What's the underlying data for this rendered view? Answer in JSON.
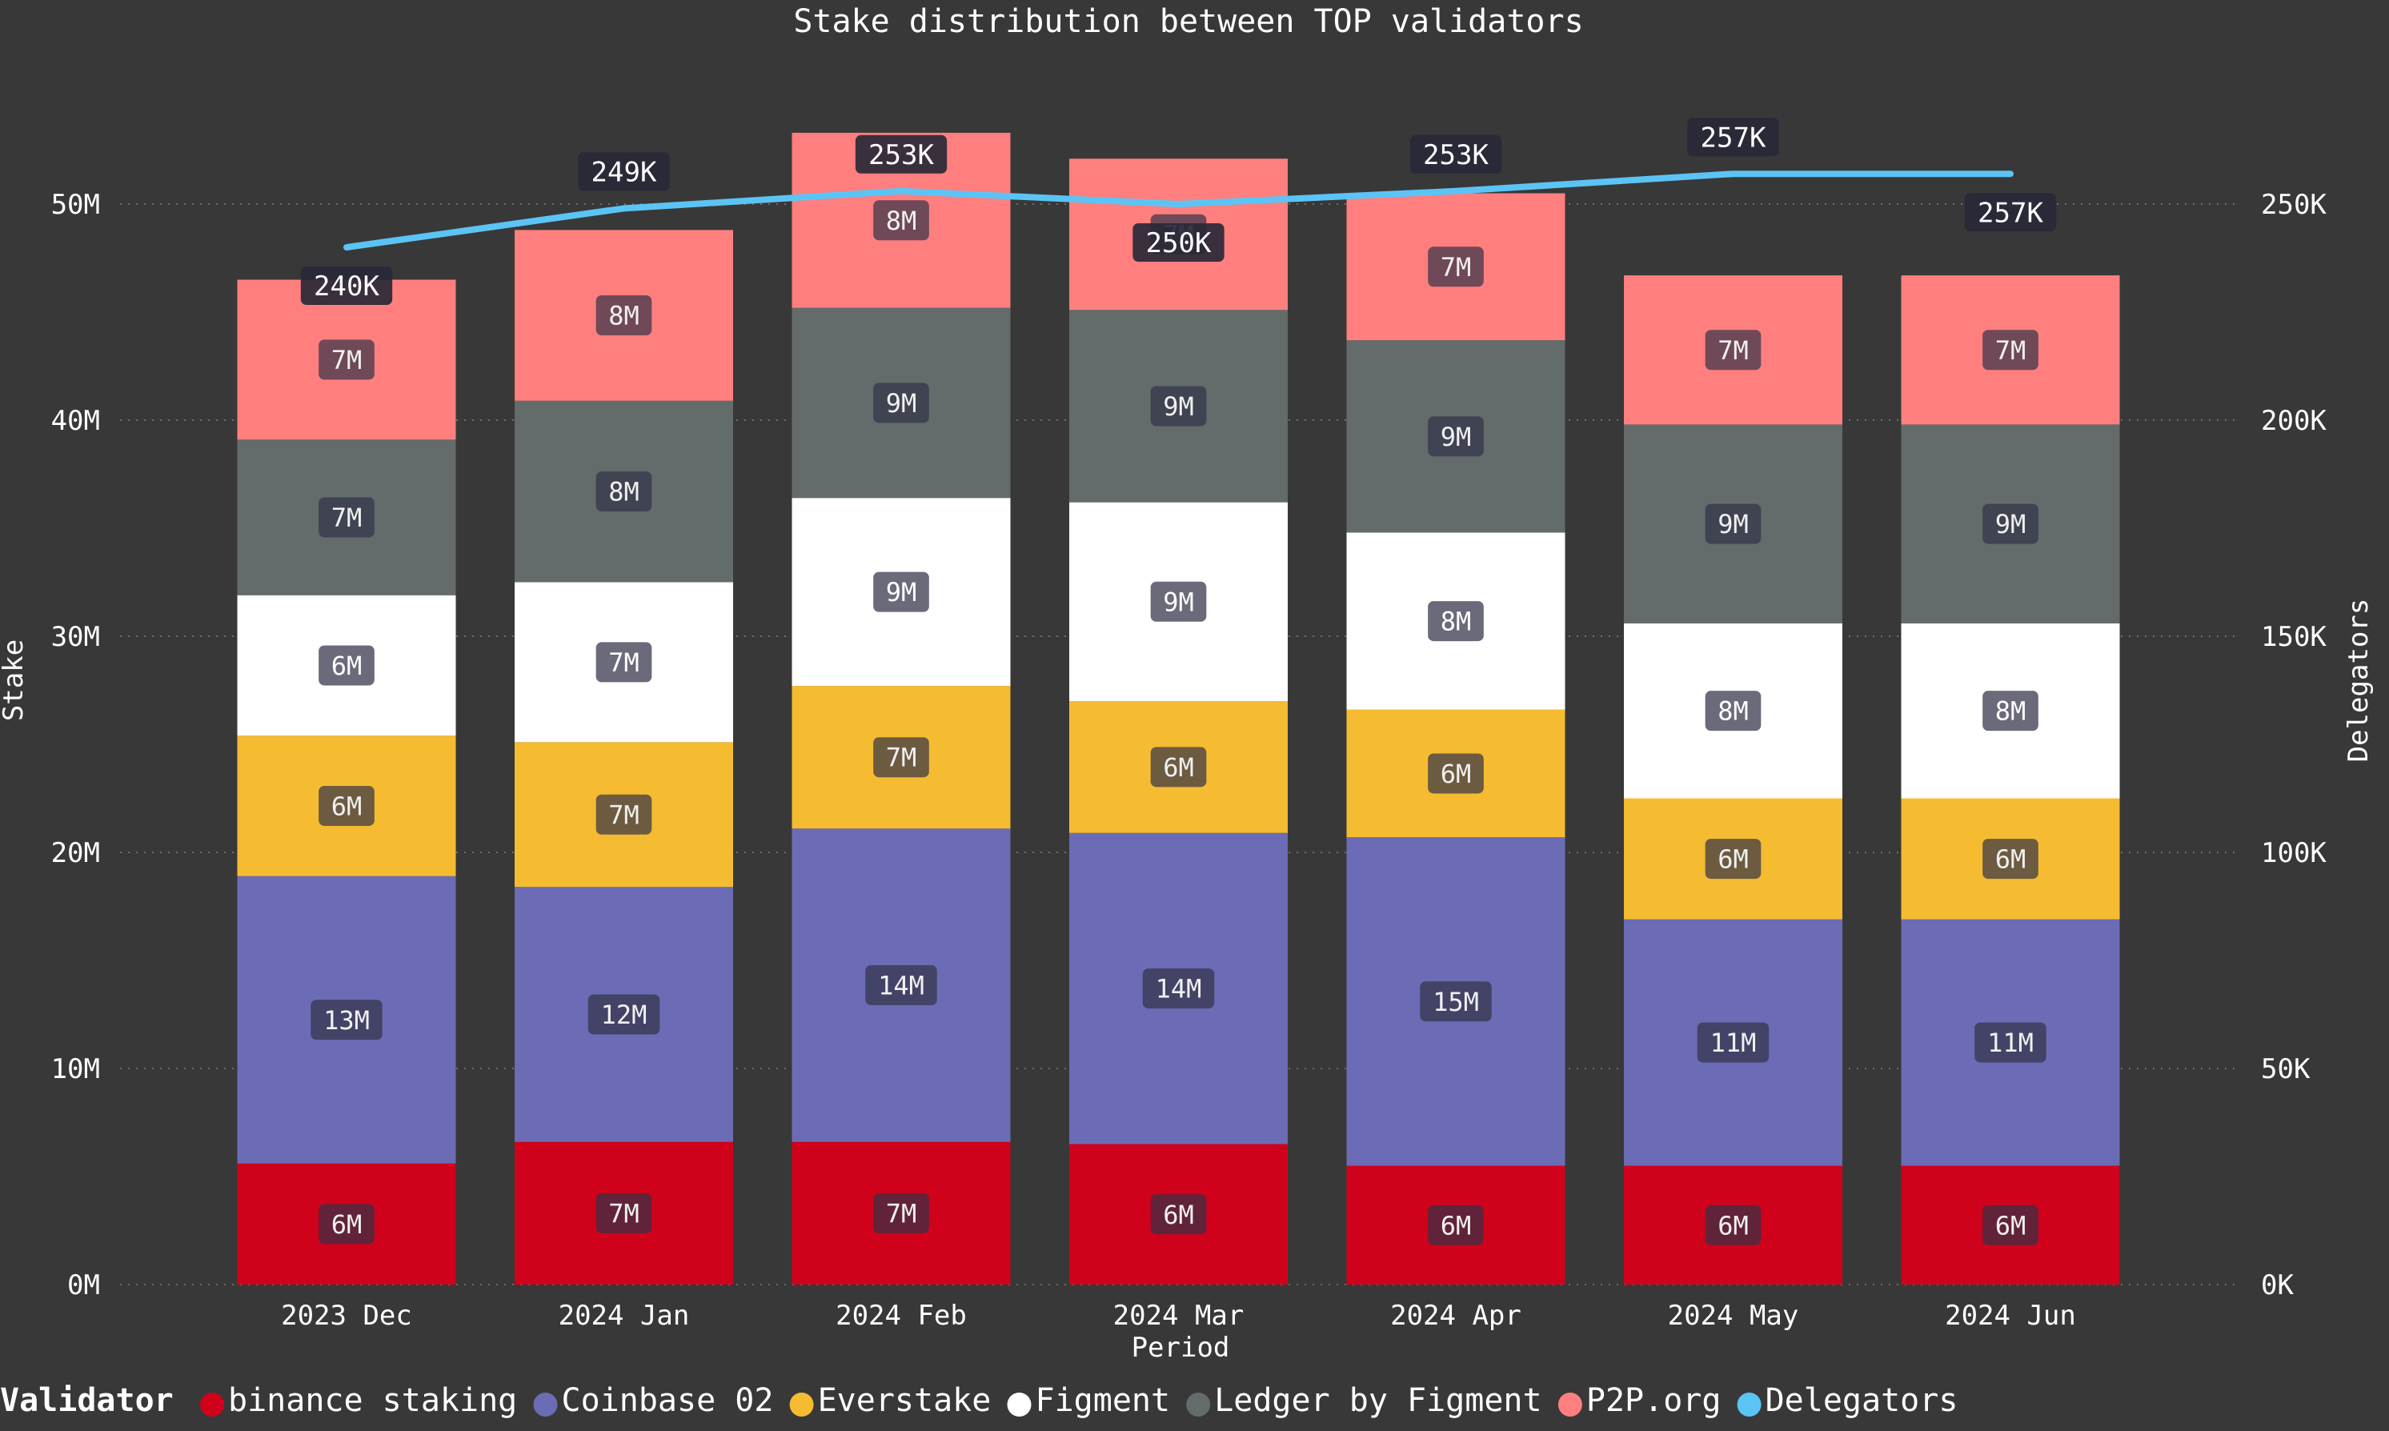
{
  "chart_data": {
    "type": "bar",
    "stacked": true,
    "title": "Stake distribution between TOP validators",
    "xlabel": "Period",
    "ylabel": "Stake",
    "y2label": "Delegators",
    "categories": [
      "2023 Dec",
      "2024 Jan",
      "2024 Feb",
      "2024 Mar",
      "2024 Apr",
      "2024 May",
      "2024 Jun"
    ],
    "ylim": [
      0,
      50000000
    ],
    "y_ticks": [
      0,
      10000000,
      20000000,
      30000000,
      40000000,
      50000000
    ],
    "y_tick_labels": [
      "0M",
      "10M",
      "20M",
      "30M",
      "40M",
      "50M"
    ],
    "y2lim": [
      0,
      250000
    ],
    "y2_ticks": [
      0,
      50000,
      100000,
      150000,
      200000,
      250000
    ],
    "y2_tick_labels": [
      "0K",
      "50K",
      "100K",
      "150K",
      "200K",
      "250K"
    ],
    "grid": true,
    "legend": {
      "title": "Validator",
      "position": "bottom"
    },
    "series": [
      {
        "name": "binance staking",
        "color": "#d0021b",
        "values": [
          5600000,
          6600000,
          6600000,
          6500000,
          5500000,
          5500000,
          5500000
        ],
        "labels": [
          "6M",
          "7M",
          "7M",
          "6M",
          "6M",
          "6M",
          "6M"
        ]
      },
      {
        "name": "Coinbase 02",
        "color": "#6b6cb5",
        "values": [
          13300000,
          11800000,
          14500000,
          14400000,
          15200000,
          11400000,
          11400000
        ],
        "labels": [
          "13M",
          "12M",
          "14M",
          "14M",
          "15M",
          "11M",
          "11M"
        ]
      },
      {
        "name": "Everstake",
        "color": "#f5bc32",
        "values": [
          6500000,
          6700000,
          6600000,
          6100000,
          5900000,
          5600000,
          5600000
        ],
        "labels": [
          "6M",
          "7M",
          "7M",
          "6M",
          "6M",
          "6M",
          "6M"
        ]
      },
      {
        "name": "Figment",
        "color": "#ffffff",
        "values": [
          6500000,
          7400000,
          8700000,
          9200000,
          8200000,
          8100000,
          8100000
        ],
        "labels": [
          "6M",
          "7M",
          "9M",
          "9M",
          "8M",
          "8M",
          "8M"
        ]
      },
      {
        "name": "Ledger by Figment",
        "color": "#636b6b",
        "values": [
          7200000,
          8400000,
          8800000,
          8900000,
          8900000,
          9200000,
          9200000
        ],
        "labels": [
          "7M",
          "8M",
          "9M",
          "9M",
          "9M",
          "9M",
          "9M"
        ]
      },
      {
        "name": "P2P.org",
        "color": "#ff7f7f",
        "values": [
          7400000,
          7900000,
          8100000,
          7000000,
          6800000,
          6900000,
          6900000
        ],
        "labels": [
          "7M",
          "8M",
          "8M",
          "7M",
          "7M",
          "7M",
          "7M"
        ]
      }
    ],
    "line_series": {
      "name": "Delegators",
      "color": "#5bc4f5",
      "axis": "right",
      "values": [
        240000,
        249000,
        253000,
        250000,
        253000,
        257000,
        257000
      ],
      "labels": [
        "240K",
        "249K",
        "253K",
        "250K",
        "253K",
        "257K",
        "257K"
      ]
    }
  }
}
